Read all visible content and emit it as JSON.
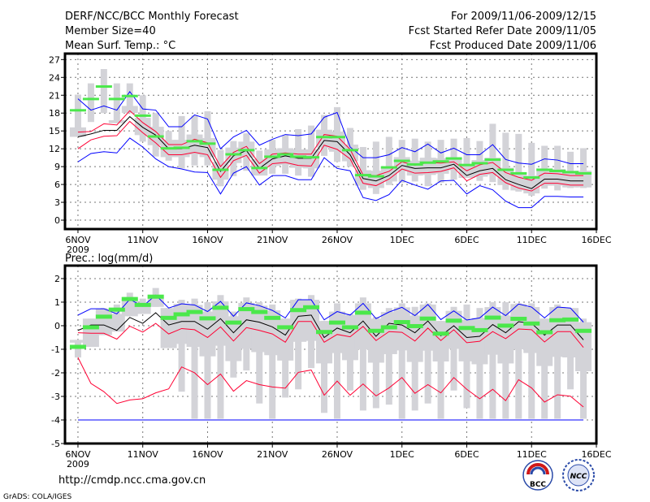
{
  "header": {
    "title": "DERF/NCC/BCC Monthly Forecast",
    "member_size": "Member Size=40",
    "variable": "Mean Surf. Temp.: °C",
    "period": "For 2009/11/06-2009/12/15",
    "fcst_started": "Fcst Started Refer Date 2009/11/05",
    "fcst_produced": "Fcst Produced Date 2009/11/06"
  },
  "footer": {
    "url": "http://cmdp.ncc.cma.gov.cn",
    "grads": "GrADS: COLA/IGES",
    "logo_bcc": "BCC",
    "logo_ncc": "NCC"
  },
  "colors": {
    "max_min": "#0000ff",
    "spread": "#ff0033",
    "mean": "#000000",
    "box": "#d3d3d8",
    "marker": "#4be84b"
  },
  "chart_data": [
    {
      "type": "line",
      "title": "Mean Surf. Temp.: °C",
      "ylim": [
        -1.5,
        28
      ],
      "yticks": [
        0,
        3,
        6,
        9,
        12,
        15,
        18,
        21,
        24,
        27
      ],
      "xtick_labels": [
        "6NOV",
        "11NOV",
        "16NOV",
        "21NOV",
        "26NOV",
        "1DEC",
        "6DEC",
        "11DEC",
        "16DEC"
      ],
      "xtick_year": "2009",
      "x_start": "2009-11-06",
      "days": 40,
      "grid": true,
      "series": [
        {
          "name": "blue_upper",
          "color": "blue",
          "values": [
            20.4,
            18.5,
            19.2,
            18.5,
            21.6,
            18.7,
            18.5,
            15.7,
            15.7,
            17.7,
            17.0,
            12.0,
            14.0,
            15.1,
            12.6,
            13.6,
            14.4,
            14.2,
            14.5,
            17.3,
            18.1,
            12.3,
            10.5,
            10.5,
            11.0,
            12.2,
            11.5,
            12.8,
            11.3,
            12.1,
            11.0,
            11.0,
            12.7,
            10.2,
            9.6,
            9.4,
            10.3,
            10.1,
            9.5,
            9.5
          ]
        },
        {
          "name": "blue_lower",
          "color": "blue",
          "values": [
            9.8,
            11.2,
            11.5,
            11.3,
            13.8,
            12.3,
            10.3,
            9.0,
            8.6,
            8.1,
            8.0,
            4.4,
            7.9,
            9.0,
            5.9,
            7.5,
            7.5,
            6.8,
            6.8,
            10.5,
            8.7,
            8.3,
            3.8,
            3.3,
            4.3,
            6.7,
            5.9,
            5.2,
            6.6,
            6.7,
            4.4,
            5.8,
            5.1,
            3.2,
            2.1,
            2.1,
            4.0,
            4.0,
            3.9,
            3.9
          ]
        },
        {
          "name": "red_upper",
          "color": "red",
          "values": [
            14.8,
            14.9,
            16.2,
            16.0,
            18.4,
            16.4,
            14.9,
            12.7,
            12.7,
            13.6,
            13.0,
            9.0,
            11.4,
            12.4,
            9.5,
            11.1,
            11.3,
            11.1,
            11.1,
            14.4,
            14.1,
            11.9,
            7.6,
            7.5,
            8.2,
            9.8,
            9.2,
            9.7,
            9.6,
            9.8,
            8.3,
            9.3,
            9.7,
            8.0,
            7.2,
            6.7,
            7.9,
            7.8,
            7.5,
            7.5
          ]
        },
        {
          "name": "red_lower",
          "color": "red",
          "values": [
            12.0,
            13.5,
            14.1,
            14.2,
            16.6,
            14.7,
            13.0,
            11.0,
            11.0,
            11.4,
            11.0,
            7.2,
            10.0,
            10.9,
            7.9,
            9.5,
            9.7,
            9.2,
            9.1,
            12.6,
            11.9,
            10.3,
            6.2,
            5.8,
            6.9,
            8.6,
            7.9,
            8.0,
            8.2,
            8.8,
            6.6,
            7.7,
            8.0,
            6.3,
            5.4,
            4.9,
            6.2,
            6.2,
            5.9,
            5.9
          ]
        },
        {
          "name": "mean",
          "color": "black",
          "values": [
            14.0,
            14.5,
            15.1,
            15.1,
            17.4,
            15.6,
            14.3,
            12.0,
            12.0,
            12.6,
            12.2,
            8.2,
            10.8,
            11.7,
            8.7,
            10.3,
            10.8,
            10.4,
            10.4,
            13.4,
            13.2,
            11.0,
            7.0,
            6.6,
            7.5,
            9.2,
            8.7,
            8.8,
            8.8,
            9.4,
            7.5,
            8.3,
            8.7,
            6.8,
            6.0,
            5.3,
            6.9,
            6.9,
            6.6,
            6.6
          ]
        },
        {
          "name": "marker",
          "color": "green",
          "values": [
            18.4,
            20.3,
            22.4,
            20.3,
            20.8,
            17.5,
            14.0,
            12.0,
            12.1,
            13.2,
            12.8,
            8.4,
            11.0,
            11.7,
            8.7,
            10.6,
            11.0,
            10.6,
            10.5,
            13.9,
            13.9,
            11.7,
            7.5,
            7.3,
            8.8,
            9.9,
            9.3,
            9.6,
            9.8,
            10.3,
            9.2,
            9.5,
            10.1,
            8.4,
            7.8,
            7.1,
            8.4,
            8.2,
            8.0,
            7.8
          ]
        }
      ],
      "box_max": [
        21.1,
        23,
        25.4,
        23,
        23,
        21,
        18,
        15,
        17.5,
        17.6,
        18.3,
        11.8,
        13.3,
        14.6,
        11.7,
        13.5,
        14.3,
        15.3,
        15.9,
        17.7,
        19,
        15.5,
        12.3,
        13.2,
        14,
        13.5,
        13.7,
        13.2,
        13.5,
        13.7,
        13.8,
        13.3,
        16.2,
        14.7,
        14.5,
        13.0,
        12.5,
        12.5,
        11.5,
        12.1
      ],
      "box_min": [
        14,
        16.5,
        18,
        16.3,
        18,
        13.2,
        10.7,
        10,
        8.7,
        9.2,
        9.2,
        5.7,
        7.4,
        8.3,
        7.5,
        7.8,
        7.8,
        7.5,
        7.3,
        10.8,
        9.8,
        9.0,
        5.1,
        4.4,
        5.9,
        6.3,
        6.5,
        5.7,
        6.3,
        6.8,
        7.1,
        6.6,
        6.4,
        5.1,
        4.8,
        4.1,
        5.3,
        5.0,
        5.4,
        5.4
      ]
    },
    {
      "type": "line",
      "title": "Prec.: log(mm/d)",
      "ylim": [
        -5,
        2.55
      ],
      "yticks": [
        -5,
        -4,
        -3,
        -2,
        -1,
        0,
        1,
        2
      ],
      "xtick_labels": [
        "6NOV",
        "11NOV",
        "16NOV",
        "21NOV",
        "26NOV",
        "1DEC",
        "6DEC",
        "11DEC",
        "16DEC"
      ],
      "xtick_year": "2009",
      "x_start": "2009-11-06",
      "days": 40,
      "grid": true,
      "series": [
        {
          "name": "blue_upper",
          "color": "blue",
          "values": [
            0.45,
            0.72,
            0.72,
            0.5,
            1.12,
            0.82,
            1.3,
            0.75,
            0.93,
            0.88,
            0.6,
            1.03,
            0.4,
            0.97,
            0.85,
            0.65,
            0.33,
            1.1,
            1.1,
            0.25,
            0.6,
            0.45,
            0.95,
            0.3,
            0.58,
            0.78,
            0.43,
            0.9,
            0.26,
            0.63,
            0.24,
            0.33,
            0.79,
            0.43,
            0.92,
            0.79,
            0.33,
            0.79,
            0.75,
            0.15
          ]
        },
        {
          "name": "blue_lower",
          "color": "blue",
          "values": [
            -4,
            -4,
            -4,
            -4,
            -4,
            -4,
            -4,
            -4,
            -4,
            -4,
            -4,
            -4,
            -4,
            -4,
            -4,
            -4,
            -4,
            -4,
            -4,
            -4,
            -4,
            -4,
            -4,
            -4,
            -4,
            -4,
            -4,
            -4,
            -4,
            -4,
            -4,
            -4,
            -4,
            -4,
            -4,
            -4,
            -4,
            -4,
            -4,
            -4
          ]
        },
        {
          "name": "red_upper",
          "color": "red",
          "values": [
            -0.3,
            -0.32,
            -0.32,
            -0.57,
            -0.02,
            -0.27,
            0.1,
            -0.35,
            -0.12,
            -0.17,
            -0.5,
            -0.05,
            -0.65,
            -0.08,
            -0.2,
            -0.35,
            -0.7,
            0.18,
            0.18,
            -0.7,
            -0.37,
            -0.47,
            -0.03,
            -0.63,
            -0.25,
            -0.28,
            -0.65,
            -0.1,
            -0.63,
            -0.17,
            -0.72,
            -0.66,
            -0.25,
            -0.55,
            -0.14,
            -0.17,
            -0.69,
            -0.25,
            -0.25,
            -0.92
          ]
        },
        {
          "name": "red_lower",
          "color": "red",
          "values": [
            -1.35,
            -2.45,
            -2.8,
            -3.3,
            -3.15,
            -3.1,
            -2.85,
            -2.68,
            -1.75,
            -2.0,
            -2.5,
            -2.05,
            -2.78,
            -2.33,
            -2.5,
            -2.6,
            -2.65,
            -1.98,
            -1.88,
            -2.95,
            -2.35,
            -2.95,
            -2.47,
            -2.98,
            -2.64,
            -2.2,
            -2.87,
            -2.5,
            -2.85,
            -2.2,
            -2.7,
            -3.1,
            -2.7,
            -3.18,
            -2.29,
            -2.64,
            -3.24,
            -2.93,
            -2.99,
            -3.45
          ]
        },
        {
          "name": "mean",
          "color": "black",
          "values": [
            -0.2,
            0.03,
            0.03,
            -0.2,
            0.35,
            0.1,
            0.55,
            0.03,
            0.18,
            0.18,
            -0.15,
            0.3,
            -0.3,
            0.25,
            0.15,
            -0.05,
            -0.4,
            0.4,
            0.45,
            -0.5,
            -0.1,
            -0.3,
            0.2,
            -0.45,
            0.1,
            0.03,
            -0.3,
            0.2,
            -0.43,
            0,
            -0.5,
            -0.45,
            0.05,
            -0.3,
            0.17,
            0.1,
            -0.4,
            0.03,
            0.03,
            -0.6
          ]
        },
        {
          "name": "marker",
          "color": "green",
          "values": [
            -0.88,
            -0.05,
            0.4,
            0.7,
            1.15,
            0.9,
            1.25,
            0.35,
            0.5,
            0.6,
            0.33,
            0.78,
            0.15,
            0.72,
            0.6,
            0.35,
            -0.05,
            0.68,
            0.8,
            -0.25,
            0.15,
            -0.05,
            0.57,
            -0.2,
            -0.05,
            0.17,
            0,
            0.32,
            -0.32,
            0.23,
            -0.08,
            -0.17,
            0.36,
            0.02,
            0.31,
            0.11,
            -0.26,
            0.25,
            0.28,
            -0.2
          ]
        }
      ],
      "box_max": [
        -0.6,
        0.3,
        0.75,
        0.9,
        1.4,
        1.15,
        1.6,
        0.75,
        1.1,
        1.15,
        1.0,
        1.3,
        0.6,
        1.2,
        1.0,
        0.9,
        0.3,
        1.15,
        1.3,
        0.2,
        0.95,
        0.5,
        1.2,
        0.37,
        0.75,
        0.95,
        0.8,
        0.95,
        0.2,
        0.8,
        0.9,
        0.75,
        1.0,
        1.0,
        0.95,
        0.95,
        0.3,
        0.9,
        0.75,
        0.3
      ],
      "box_min": [
        -1.35,
        -0.9,
        -0.4,
        -0.25,
        0.4,
        0.5,
        0.8,
        -0.95,
        -2.8,
        -3.95,
        -3.95,
        -3.95,
        -2.2,
        -1.9,
        -3.3,
        -3.95,
        -3.05,
        -2.7,
        -1.8,
        -3.7,
        -3.95,
        -2.75,
        -3.6,
        -3.5,
        -3.35,
        -3.95,
        -3.6,
        -3.3,
        -3.95,
        -2.75,
        -3.5,
        -3.95,
        -3.95,
        -3.95,
        -3.95,
        -3.95,
        -3.95,
        -3.95,
        -2.7,
        -3.95
      ]
    }
  ]
}
